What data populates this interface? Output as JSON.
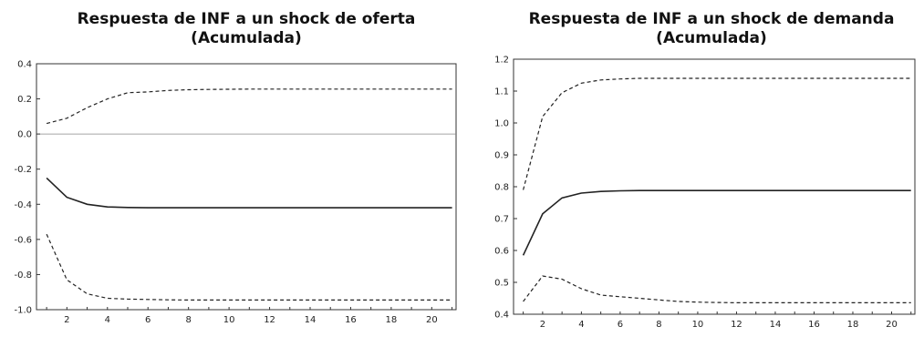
{
  "chart_data": [
    {
      "type": "line",
      "title": "Respuesta de INF a un shock de oferta",
      "subtitle": "(Acumulada)",
      "x": [
        1,
        2,
        3,
        4,
        5,
        6,
        7,
        8,
        9,
        10,
        11,
        12,
        13,
        14,
        15,
        16,
        17,
        18,
        19,
        20,
        21
      ],
      "xticks": [
        "2",
        "4",
        "6",
        "8",
        "10",
        "12",
        "14",
        "16",
        "18",
        "20"
      ],
      "xlim": [
        0.5,
        21.2
      ],
      "ylim": [
        -1.0,
        0.4
      ],
      "yticks": [
        "0.4",
        "0.2",
        "0.0",
        "-0.2",
        "-0.4",
        "-0.6",
        "-0.8",
        "-1.0"
      ],
      "zero_line": true,
      "series": [
        {
          "style": "solid",
          "values": [
            -0.25,
            -0.36,
            -0.4,
            -0.415,
            -0.418,
            -0.42,
            -0.42,
            -0.42,
            -0.42,
            -0.42,
            -0.42,
            -0.42,
            -0.42,
            -0.42,
            -0.42,
            -0.42,
            -0.42,
            -0.42,
            -0.42,
            -0.42,
            -0.42
          ]
        },
        {
          "style": "dashed",
          "values": [
            0.06,
            0.09,
            0.15,
            0.2,
            0.235,
            0.24,
            0.248,
            0.252,
            0.254,
            0.255,
            0.256,
            0.256,
            0.256,
            0.256,
            0.256,
            0.256,
            0.256,
            0.256,
            0.256,
            0.256,
            0.256
          ]
        },
        {
          "style": "dashed",
          "values": [
            -0.57,
            -0.83,
            -0.91,
            -0.935,
            -0.94,
            -0.942,
            -0.944,
            -0.945,
            -0.945,
            -0.945,
            -0.945,
            -0.945,
            -0.945,
            -0.945,
            -0.945,
            -0.945,
            -0.945,
            -0.945,
            -0.945,
            -0.945,
            -0.945
          ]
        }
      ]
    },
    {
      "type": "line",
      "title": "Respuesta de INF a un shock de demanda",
      "subtitle": "(Acumulada)",
      "x": [
        1,
        2,
        3,
        4,
        5,
        6,
        7,
        8,
        9,
        10,
        11,
        12,
        13,
        14,
        15,
        16,
        17,
        18,
        19,
        20,
        21
      ],
      "xticks": [
        "2",
        "4",
        "6",
        "8",
        "10",
        "12",
        "14",
        "16",
        "18",
        "20"
      ],
      "xlim": [
        0.5,
        21.2
      ],
      "ylim": [
        0.4,
        1.2
      ],
      "yticks": [
        "1.2",
        "1.1",
        "1.0",
        "0.9",
        "0.8",
        "0.7",
        "0.6",
        "0.5",
        "0.4"
      ],
      "zero_line": false,
      "series": [
        {
          "style": "solid",
          "values": [
            0.585,
            0.715,
            0.765,
            0.78,
            0.785,
            0.787,
            0.788,
            0.788,
            0.788,
            0.788,
            0.788,
            0.788,
            0.788,
            0.788,
            0.788,
            0.788,
            0.788,
            0.788,
            0.788,
            0.788,
            0.788
          ]
        },
        {
          "style": "dashed",
          "values": [
            0.79,
            1.02,
            1.095,
            1.125,
            1.135,
            1.138,
            1.14,
            1.14,
            1.14,
            1.14,
            1.14,
            1.14,
            1.14,
            1.14,
            1.14,
            1.14,
            1.14,
            1.14,
            1.14,
            1.14,
            1.14
          ]
        },
        {
          "style": "dashed",
          "values": [
            0.44,
            0.52,
            0.51,
            0.48,
            0.46,
            0.455,
            0.45,
            0.445,
            0.44,
            0.438,
            0.437,
            0.436,
            0.436,
            0.436,
            0.436,
            0.436,
            0.436,
            0.436,
            0.436,
            0.436,
            0.436
          ]
        }
      ]
    }
  ]
}
